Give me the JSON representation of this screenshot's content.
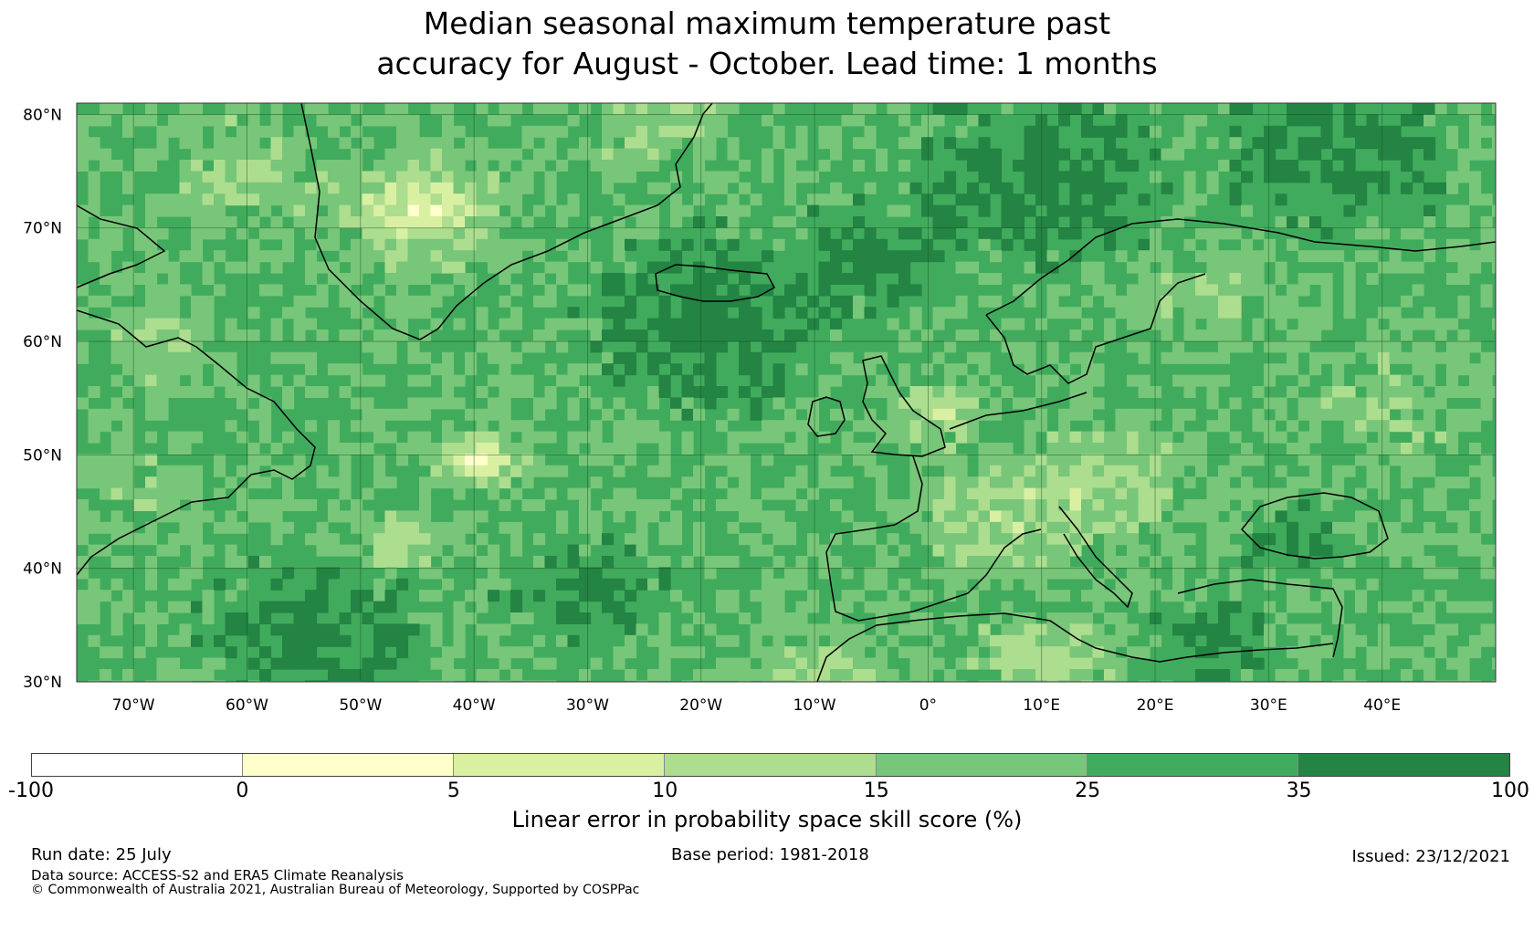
{
  "title": {
    "line1": "Median seasonal maximum temperature past",
    "line2": "accuracy for August - October. Lead time: 1 months"
  },
  "map": {
    "lat_labels": [
      "80°N",
      "70°N",
      "60°N",
      "50°N",
      "40°N",
      "30°N"
    ],
    "lon_labels": [
      "70°W",
      "60°W",
      "50°W",
      "40°W",
      "30°W",
      "20°W",
      "10°W",
      "0°",
      "10°E",
      "20°E",
      "30°E",
      "40°E"
    ],
    "extent": {
      "lon": [
        -75,
        50
      ],
      "lat": [
        30,
        81
      ]
    }
  },
  "colorbar": {
    "ticks": [
      "-100",
      "0",
      "5",
      "10",
      "15",
      "25",
      "35",
      "100"
    ],
    "colors": [
      "#ffffff",
      "#ffffcc",
      "#d9f0a3",
      "#addd8e",
      "#78c679",
      "#41ab5d",
      "#238443"
    ],
    "label": "Linear error in probability space skill score (%)"
  },
  "footer": {
    "run_date": "Run date: 25 July",
    "base_period": "Base period: 1981-2018",
    "issued": "Issued: 23/12/2021",
    "data_source": "Data source: ACCESS-S2 and ERA5 Climate Reanalysis",
    "copyright": "© Commonwealth of Australia 2021, Australian Bureau of Meteorology, Supported by COSPPac"
  }
}
